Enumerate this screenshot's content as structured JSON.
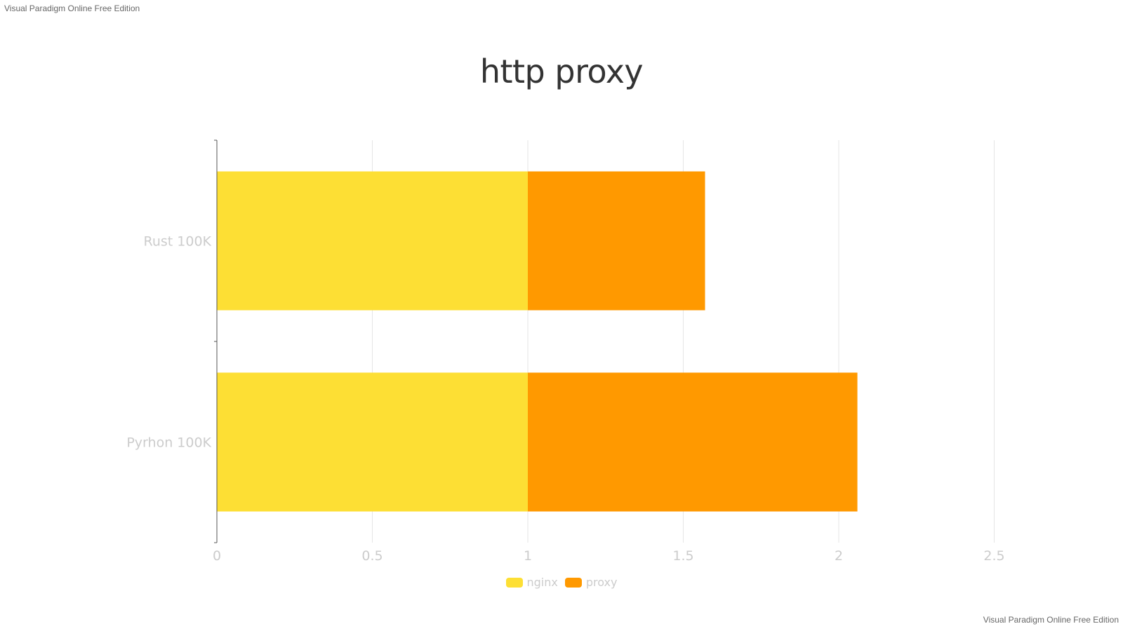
{
  "watermark": "Visual Paradigm Online Free Edition",
  "chart_data": {
    "type": "bar",
    "orientation": "horizontal",
    "stacked": true,
    "title": "http proxy",
    "categories": [
      "Rust 100K",
      "Pyrhon 100K"
    ],
    "series": [
      {
        "name": "nginx",
        "color": "#fddf34",
        "values": [
          1,
          1
        ]
      },
      {
        "name": "proxy",
        "color": "#ff9900",
        "values": [
          0.57,
          1.06
        ]
      }
    ],
    "x_ticks": [
      "0",
      "0.5",
      "1",
      "1.5",
      "2",
      "2.5"
    ],
    "xlim": [
      0,
      2.5
    ],
    "grid": true,
    "legend_position": "bottom"
  }
}
